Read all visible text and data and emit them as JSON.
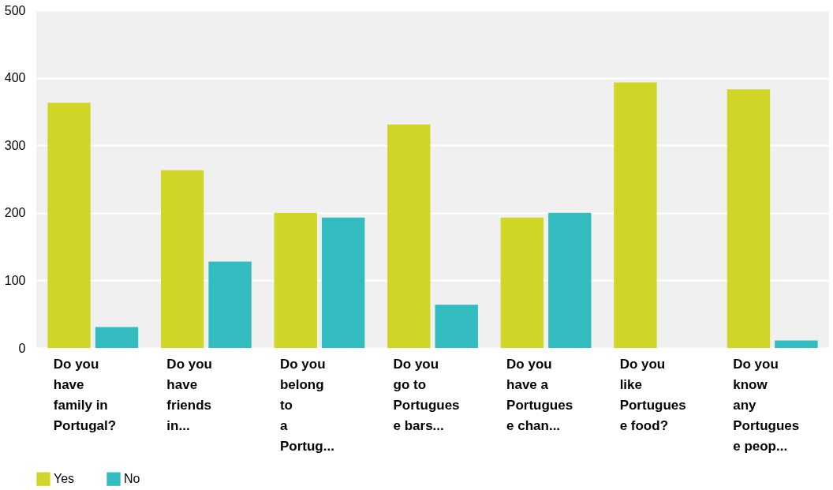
{
  "chart_data": {
    "type": "bar",
    "categories": [
      "Do you\nhave\nfamily in\nPortugal?",
      "Do you\nhave\nfriends\nin...",
      "Do you\nbelong\nto\na\nPortug...",
      "Do you\ngo to\nPortugues\ne bars...",
      "Do you\nhave a\nPortugues\ne chan...",
      "Do you\nlike\nPortugues\ne food?",
      "Do you\nknow\nany\nPortugues\ne peop..."
    ],
    "series": [
      {
        "name": "Yes",
        "color": "#cfd628",
        "values": [
          363,
          263,
          200,
          331,
          193,
          393,
          383
        ]
      },
      {
        "name": "No",
        "color": "#33bcbf",
        "values": [
          31,
          128,
          193,
          64,
          200,
          0,
          11
        ]
      }
    ],
    "ylim": [
      0,
      500
    ],
    "yticks": [
      0,
      100,
      200,
      300,
      400,
      500
    ],
    "grid": "y",
    "legend": "bottom left"
  }
}
